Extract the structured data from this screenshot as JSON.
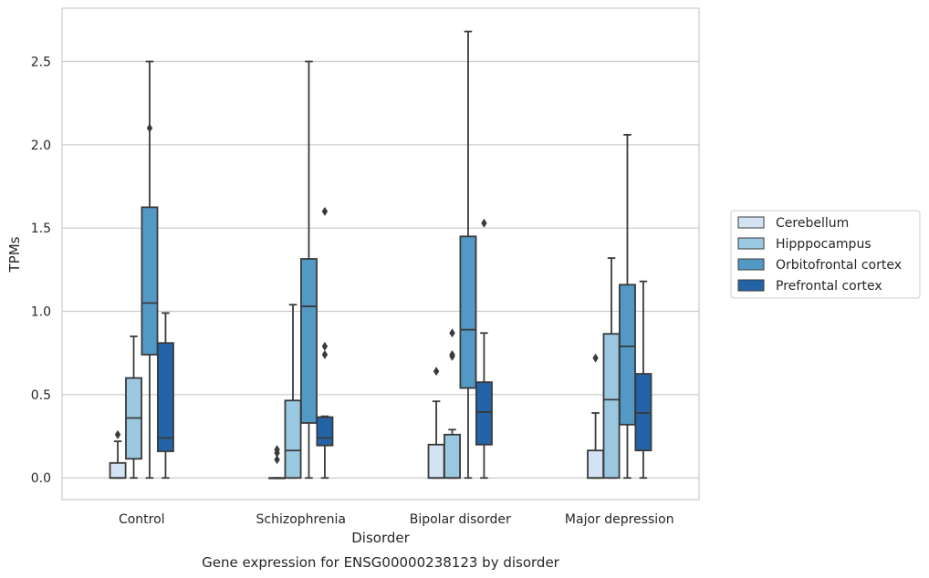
{
  "chart_data": {
    "type": "box",
    "title": "",
    "caption": "Gene expression for ENSG00000238123 by disorder",
    "xlabel": "Disorder",
    "ylabel": "TPMs",
    "ylim": [
      -0.13,
      2.82
    ],
    "yticks": [
      "0.0",
      "0.5",
      "1.0",
      "1.5",
      "2.0",
      "2.5"
    ],
    "grid": true,
    "legend_position": "right",
    "categories": [
      "Control",
      "Schizophrenia",
      "Bipolar disorder",
      "Major depression"
    ],
    "series": [
      {
        "name": "Cerebellum",
        "color": "#d3e3f3",
        "boxes": [
          {
            "whisker_low": 0.0,
            "q1": 0.0,
            "median": 0.0,
            "q3": 0.09,
            "whisker_high": 0.22,
            "outliers": [
              0.26
            ]
          },
          {
            "whisker_low": 0.0,
            "q1": 0.0,
            "median": 0.0,
            "q3": 0.0,
            "whisker_high": 0.0,
            "outliers": [
              0.11,
              0.15,
              0.17
            ]
          },
          {
            "whisker_low": 0.0,
            "q1": 0.0,
            "median": 0.0,
            "q3": 0.2,
            "whisker_high": 0.46,
            "outliers": [
              0.64
            ]
          },
          {
            "whisker_low": 0.0,
            "q1": 0.0,
            "median": 0.0,
            "q3": 0.165,
            "whisker_high": 0.39,
            "outliers": [
              0.72
            ]
          }
        ]
      },
      {
        "name": "Hipppocampus",
        "color": "#9ac8e0",
        "boxes": [
          {
            "whisker_low": 0.0,
            "q1": 0.115,
            "median": 0.36,
            "q3": 0.6,
            "whisker_high": 0.85,
            "outliers": []
          },
          {
            "whisker_low": 0.0,
            "q1": 0.0,
            "median": 0.165,
            "q3": 0.465,
            "whisker_high": 1.04,
            "outliers": []
          },
          {
            "whisker_low": 0.0,
            "q1": 0.0,
            "median": 0.0,
            "q3": 0.26,
            "whisker_high": 0.29,
            "outliers": [
              0.73,
              0.74,
              0.87
            ]
          },
          {
            "whisker_low": 0.0,
            "q1": 0.0,
            "median": 0.47,
            "q3": 0.865,
            "whisker_high": 1.32,
            "outliers": []
          }
        ]
      },
      {
        "name": "Orbitofrontal cortex",
        "color": "#5399c6",
        "boxes": [
          {
            "whisker_low": 0.0,
            "q1": 0.74,
            "median": 1.05,
            "q3": 1.625,
            "whisker_high": 2.5,
            "outliers": [
              2.1
            ]
          },
          {
            "whisker_low": 0.0,
            "q1": 0.33,
            "median": 1.03,
            "q3": 1.315,
            "whisker_high": 2.5,
            "outliers": []
          },
          {
            "whisker_low": 0.0,
            "q1": 0.54,
            "median": 0.89,
            "q3": 1.45,
            "whisker_high": 2.68,
            "outliers": []
          },
          {
            "whisker_low": 0.0,
            "q1": 0.32,
            "median": 0.79,
            "q3": 1.16,
            "whisker_high": 2.06,
            "outliers": []
          }
        ]
      },
      {
        "name": "Prefrontal cortex",
        "color": "#2264a7",
        "boxes": [
          {
            "whisker_low": 0.0,
            "q1": 0.16,
            "median": 0.24,
            "q3": 0.81,
            "whisker_high": 0.99,
            "outliers": []
          },
          {
            "whisker_low": 0.0,
            "q1": 0.195,
            "median": 0.24,
            "q3": 0.365,
            "whisker_high": 0.37,
            "outliers": [
              0.74,
              0.79,
              1.6
            ]
          },
          {
            "whisker_low": 0.0,
            "q1": 0.2,
            "median": 0.395,
            "q3": 0.575,
            "whisker_high": 0.87,
            "outliers": [
              1.53
            ]
          },
          {
            "whisker_low": 0.0,
            "q1": 0.165,
            "median": 0.39,
            "q3": 0.625,
            "whisker_high": 1.18,
            "outliers": []
          }
        ]
      }
    ]
  }
}
